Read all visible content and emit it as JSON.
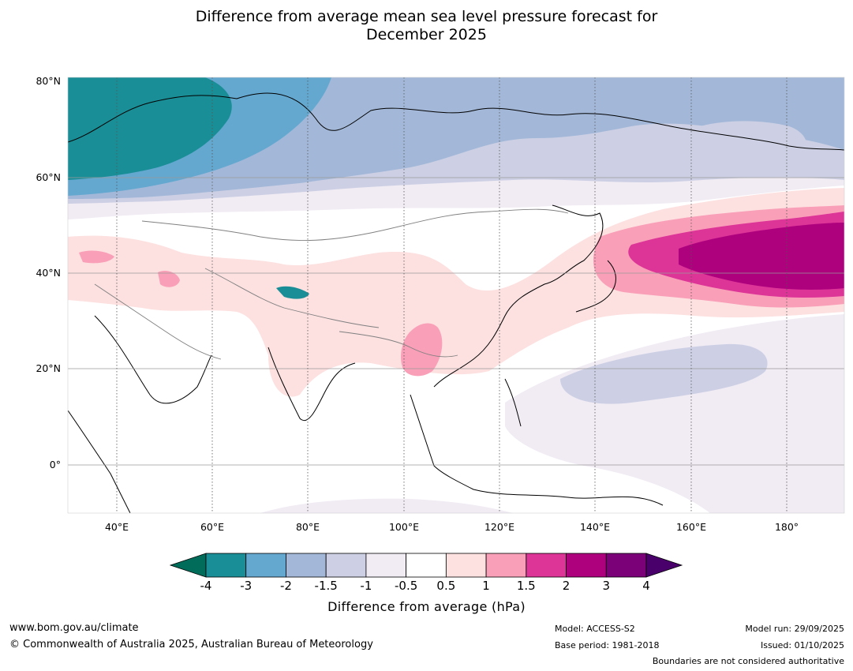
{
  "title": {
    "line1": "Difference from average mean sea level pressure forecast for",
    "line2": "December 2025"
  },
  "map": {
    "lat_labels": [
      "80°N",
      "60°N",
      "40°N",
      "20°N",
      "0°"
    ],
    "lon_labels": [
      "40°E",
      "60°E",
      "80°E",
      "100°E",
      "120°E",
      "140°E",
      "160°E",
      "180°"
    ]
  },
  "colorbar": {
    "title": "Difference from average (hPa)",
    "ticks": [
      "-4",
      "-3",
      "-2",
      "-1.5",
      "-1",
      "-0.5",
      "0.5",
      "1",
      "1.5",
      "2",
      "3",
      "4"
    ],
    "colors": [
      "#1a8e96",
      "#64a8d0",
      "#a3b8d8",
      "#cdd0e4",
      "#f1ebf4",
      "#ffffff",
      "#fde0e0",
      "#f99fb8",
      "#dd3497",
      "#ae017e",
      "#7a0177"
    ],
    "low_extend_color": "#016c59",
    "high_extend_color": "#49006a"
  },
  "footer": {
    "website": "www.bom.gov.au/climate",
    "copyright": "© Commonwealth of Australia 2025, Australian Bureau of Meteorology",
    "model": "Model: ACCESS-S2",
    "base_period": "Base period: 1981-2018",
    "model_run": "Model run: 29/09/2025",
    "issued": "Issued: 01/10/2025",
    "boundaries_note": "Boundaries are not considered authoritative"
  }
}
